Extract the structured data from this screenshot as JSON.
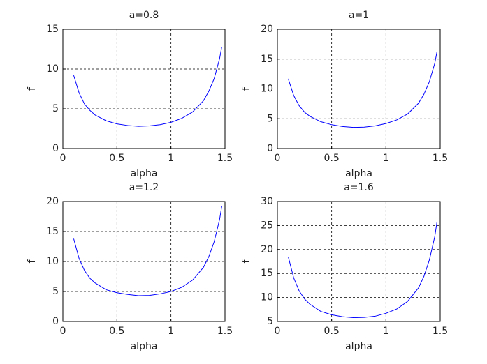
{
  "chart_data": [
    {
      "type": "line",
      "title": "a=0.8",
      "xlabel": "alpha",
      "ylabel": "f",
      "x": [
        0.1,
        0.15,
        0.2,
        0.25,
        0.3,
        0.4,
        0.5,
        0.6,
        0.7,
        0.8,
        0.9,
        1.0,
        1.1,
        1.2,
        1.3,
        1.35,
        1.4,
        1.45,
        1.47
      ],
      "values": [
        9.2,
        7.0,
        5.6,
        4.8,
        4.2,
        3.5,
        3.1,
        2.9,
        2.8,
        2.85,
        3.0,
        3.3,
        3.8,
        4.6,
        6.0,
        7.2,
        8.8,
        11.3,
        12.8
      ],
      "color": "#0000ff",
      "xlim": [
        0,
        1.5
      ],
      "xticks": [
        0,
        0.5,
        1,
        1.5
      ],
      "ylim": [
        0,
        15
      ],
      "yticks": [
        0,
        5,
        10,
        15
      ],
      "grid": true
    },
    {
      "type": "line",
      "title": "a=1",
      "xlabel": "alpha",
      "ylabel": "f",
      "x": [
        0.1,
        0.15,
        0.2,
        0.25,
        0.3,
        0.4,
        0.5,
        0.6,
        0.7,
        0.8,
        0.9,
        1.0,
        1.1,
        1.2,
        1.3,
        1.35,
        1.4,
        1.45,
        1.47
      ],
      "values": [
        11.7,
        8.9,
        7.2,
        6.1,
        5.4,
        4.5,
        4.0,
        3.7,
        3.55,
        3.6,
        3.8,
        4.2,
        4.8,
        5.8,
        7.6,
        9.1,
        11.2,
        14.3,
        16.2
      ],
      "color": "#0000ff",
      "xlim": [
        0,
        1.5
      ],
      "xticks": [
        0,
        0.5,
        1,
        1.5
      ],
      "ylim": [
        0,
        20
      ],
      "yticks": [
        0,
        5,
        10,
        15,
        20
      ],
      "grid": true
    },
    {
      "type": "line",
      "title": "a=1.2",
      "xlabel": "alpha",
      "ylabel": "f",
      "x": [
        0.1,
        0.15,
        0.2,
        0.25,
        0.3,
        0.4,
        0.5,
        0.6,
        0.7,
        0.8,
        0.9,
        1.0,
        1.1,
        1.2,
        1.3,
        1.35,
        1.4,
        1.45,
        1.47
      ],
      "values": [
        13.8,
        10.5,
        8.5,
        7.2,
        6.4,
        5.3,
        4.8,
        4.5,
        4.3,
        4.35,
        4.6,
        5.0,
        5.7,
        6.9,
        9.0,
        10.8,
        13.3,
        17.0,
        19.2
      ],
      "color": "#0000ff",
      "xlim": [
        0,
        1.5
      ],
      "xticks": [
        0,
        0.5,
        1,
        1.5
      ],
      "ylim": [
        0,
        20
      ],
      "yticks": [
        0,
        5,
        10,
        15,
        20
      ],
      "grid": true
    },
    {
      "type": "line",
      "title": "a=1.6",
      "xlabel": "alpha",
      "ylabel": "f",
      "x": [
        0.1,
        0.15,
        0.2,
        0.25,
        0.3,
        0.4,
        0.5,
        0.6,
        0.7,
        0.8,
        0.9,
        1.0,
        1.1,
        1.2,
        1.3,
        1.35,
        1.4,
        1.45,
        1.47
      ],
      "values": [
        18.5,
        14.1,
        11.4,
        9.7,
        8.6,
        7.1,
        6.4,
        6.0,
        5.8,
        5.85,
        6.1,
        6.7,
        7.6,
        9.2,
        12.0,
        14.4,
        17.8,
        22.7,
        25.7
      ],
      "color": "#0000ff",
      "xlim": [
        0,
        1.5
      ],
      "xticks": [
        0,
        0.5,
        1,
        1.5
      ],
      "ylim": [
        5,
        30
      ],
      "yticks": [
        5,
        10,
        15,
        20,
        25,
        30
      ],
      "grid": true
    }
  ]
}
